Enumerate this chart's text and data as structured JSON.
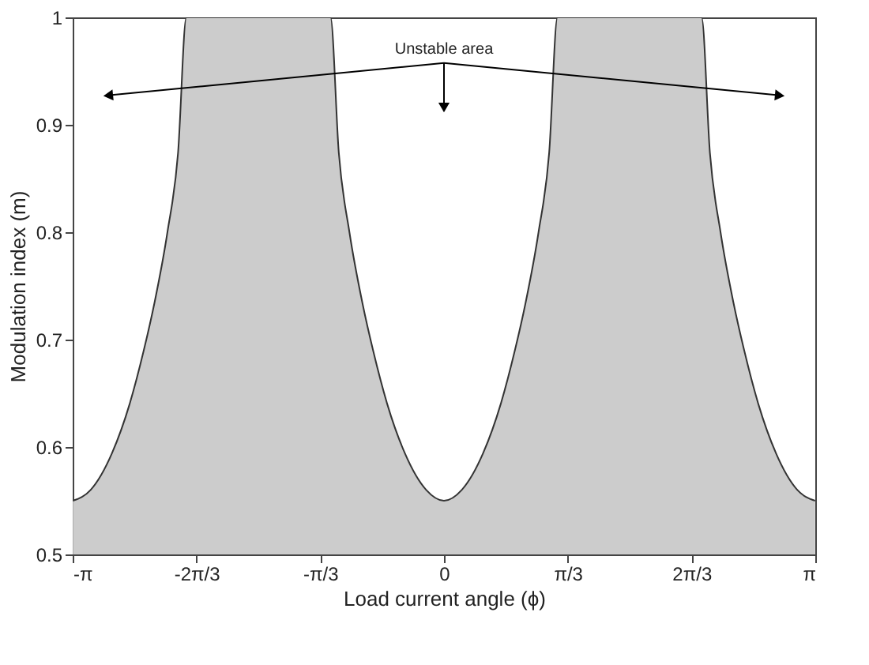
{
  "chart_data": {
    "type": "area",
    "xlabel": "Load current angle (ϕ)",
    "ylabel": "Modulation index (m)",
    "x": [
      -3.14,
      -2.99,
      -2.81,
      -2.66,
      -2.54,
      -2.45,
      -2.34,
      -2.25,
      -2.18,
      -0.96,
      -0.89,
      -0.8,
      -0.69,
      -0.6,
      -0.48,
      -0.33,
      -0.15,
      0,
      0.15,
      0.33,
      0.48,
      0.6,
      0.69,
      0.8,
      0.89,
      0.96,
      2.18,
      2.25,
      2.34,
      2.45,
      2.54,
      2.66,
      2.81,
      2.99,
      3.14
    ],
    "series": [
      {
        "color": "#cccccc",
        "values": [
          0.55,
          0.56,
          0.594,
          0.64,
          0.69,
          0.734,
          0.8,
          0.874,
          1.0,
          1.0,
          0.874,
          0.8,
          0.734,
          0.69,
          0.64,
          0.594,
          0.56,
          0.55,
          0.56,
          0.594,
          0.64,
          0.69,
          0.734,
          0.8,
          0.874,
          1.0,
          1.0,
          0.874,
          0.8,
          0.734,
          0.69,
          0.64,
          0.594,
          0.56,
          0.55
        ]
      }
    ],
    "xlim": [
      -3.1416,
      3.1416
    ],
    "xticks": [
      {
        "value": -3.1416,
        "label": "-π"
      },
      {
        "value": -2.0944,
        "label": "-2π/3"
      },
      {
        "value": -1.0472,
        "label": "-π/3"
      },
      0,
      {
        "value": 1.0472,
        "label": "π/3"
      },
      {
        "value": 2.0944,
        "label": "2π/3"
      },
      {
        "value": 3.1416,
        "label": "π"
      }
    ],
    "ylim": [
      0.5,
      1
    ],
    "yticks": [
      0.5,
      0.6,
      0.7,
      0.8,
      0.9,
      1
    ],
    "annotations": [
      "Unstable area"
    ],
    "grid": false
  }
}
